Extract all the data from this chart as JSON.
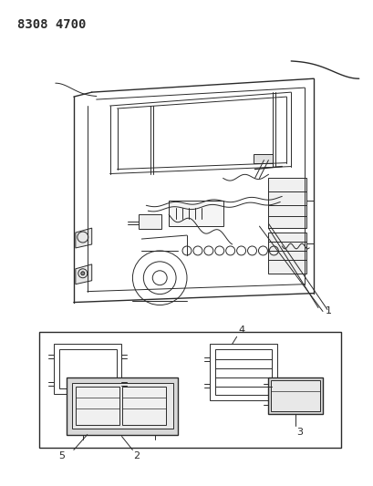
{
  "title_text": "8308 4700",
  "title_fontsize": 10,
  "bg_color": "#ffffff",
  "line_color": "#2a2a2a",
  "fig_width": 4.1,
  "fig_height": 5.33,
  "dpi": 100
}
